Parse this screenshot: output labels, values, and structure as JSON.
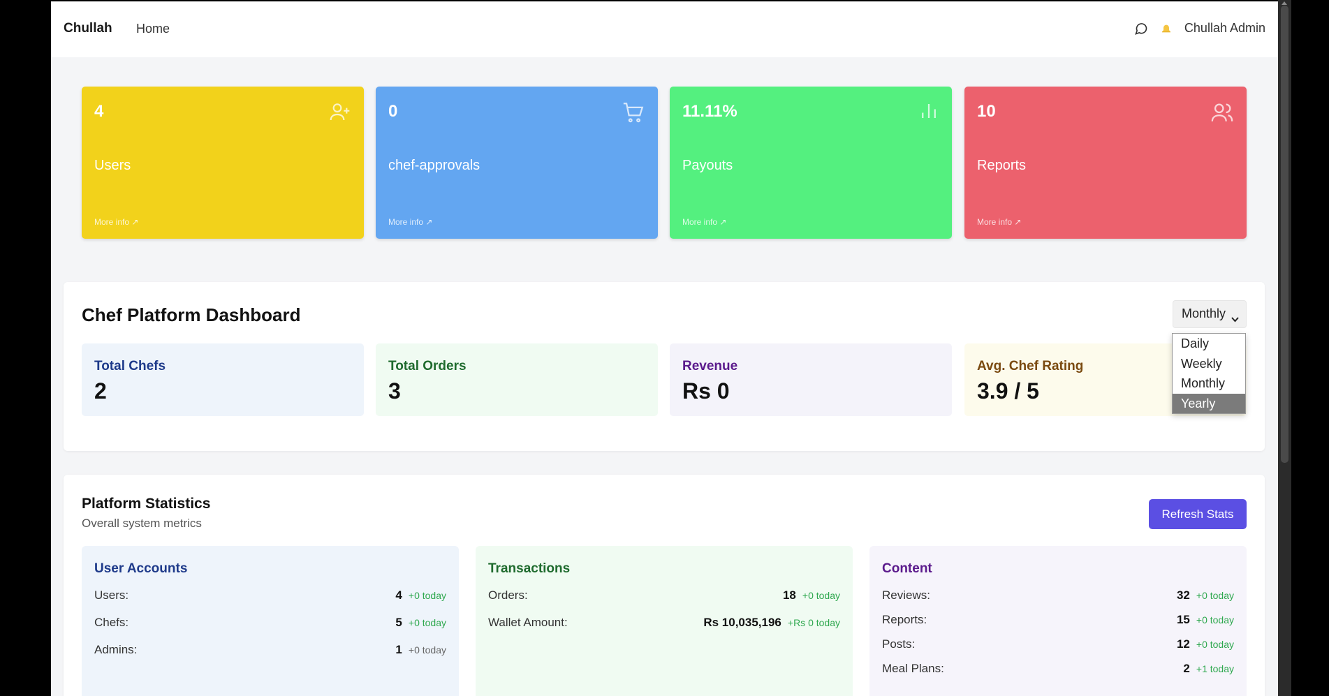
{
  "navbar": {
    "brand": "Chullah",
    "home_link": "Home",
    "user_name": "Chullah Admin"
  },
  "stat_cards": [
    {
      "value": "4",
      "label": "Users",
      "more": "More info ↗",
      "color": "#f2d21b",
      "icon": "user-plus-icon"
    },
    {
      "value": "0",
      "label": "chef-approvals",
      "more": "More info ↗",
      "color": "#63a6f1",
      "icon": "cart-icon"
    },
    {
      "value": "11.11%",
      "label": "Payouts",
      "more": "More info ↗",
      "color": "#54f07f",
      "icon": "bar-chart-icon"
    },
    {
      "value": "10",
      "label": "Reports",
      "more": "More info ↗",
      "color": "#ec616d",
      "icon": "users-icon"
    }
  ],
  "dashboard": {
    "title": "Chef Platform Dashboard",
    "period_selected": "Monthly",
    "period_options": [
      "Daily",
      "Weekly",
      "Monthly",
      "Yearly"
    ],
    "period_highlighted": "Yearly",
    "metrics": [
      {
        "label": "Total Chefs",
        "value": "2",
        "bg": "#eef4fb",
        "label_color": "#1e3a8a"
      },
      {
        "label": "Total Orders",
        "value": "3",
        "bg": "#f0fbf2",
        "label_color": "#1f6b2e"
      },
      {
        "label": "Revenue",
        "value": "Rs 0",
        "bg": "#f4f3fa",
        "label_color": "#5b1a8c"
      },
      {
        "label": "Avg. Chef Rating",
        "value": "3.9 / 5",
        "bg": "#fdfbec",
        "label_color": "#7a4a10"
      }
    ]
  },
  "platform_stats": {
    "title": "Platform Statistics",
    "subtitle": "Overall system metrics",
    "refresh_label": "Refresh Stats",
    "groups": [
      {
        "title": "User Accounts",
        "bg": "#eef4fb",
        "title_color": "#1e3a8a",
        "rows": [
          {
            "label": "Users:",
            "value": "4",
            "delta": "+0 today",
            "delta_style": "positive"
          },
          {
            "label": "Chefs:",
            "value": "5",
            "delta": "+0 today",
            "delta_style": "positive"
          },
          {
            "label": "Admins:",
            "value": "1",
            "delta": "+0 today",
            "delta_style": "neutral"
          }
        ]
      },
      {
        "title": "Transactions",
        "bg": "#f0fbf2",
        "title_color": "#1f6b2e",
        "rows": [
          {
            "label": "Orders:",
            "value": "18",
            "delta": "+0 today",
            "delta_style": "positive"
          },
          {
            "label": "Wallet Amount:",
            "value": "Rs 10,035,196",
            "delta": "+Rs 0 today",
            "delta_style": "positive"
          }
        ]
      },
      {
        "title": "Content",
        "bg": "#f6f4fb",
        "title_color": "#5b1a8c",
        "rows": [
          {
            "label": "Reviews:",
            "value": "32",
            "delta": "+0 today",
            "delta_style": "positive"
          },
          {
            "label": "Reports:",
            "value": "15",
            "delta": "+0 today",
            "delta_style": "positive"
          },
          {
            "label": "Posts:",
            "value": "12",
            "delta": "+0 today",
            "delta_style": "positive"
          },
          {
            "label": "Meal Plans:",
            "value": "2",
            "delta": "+1 today",
            "delta_style": "positive"
          }
        ]
      }
    ]
  }
}
